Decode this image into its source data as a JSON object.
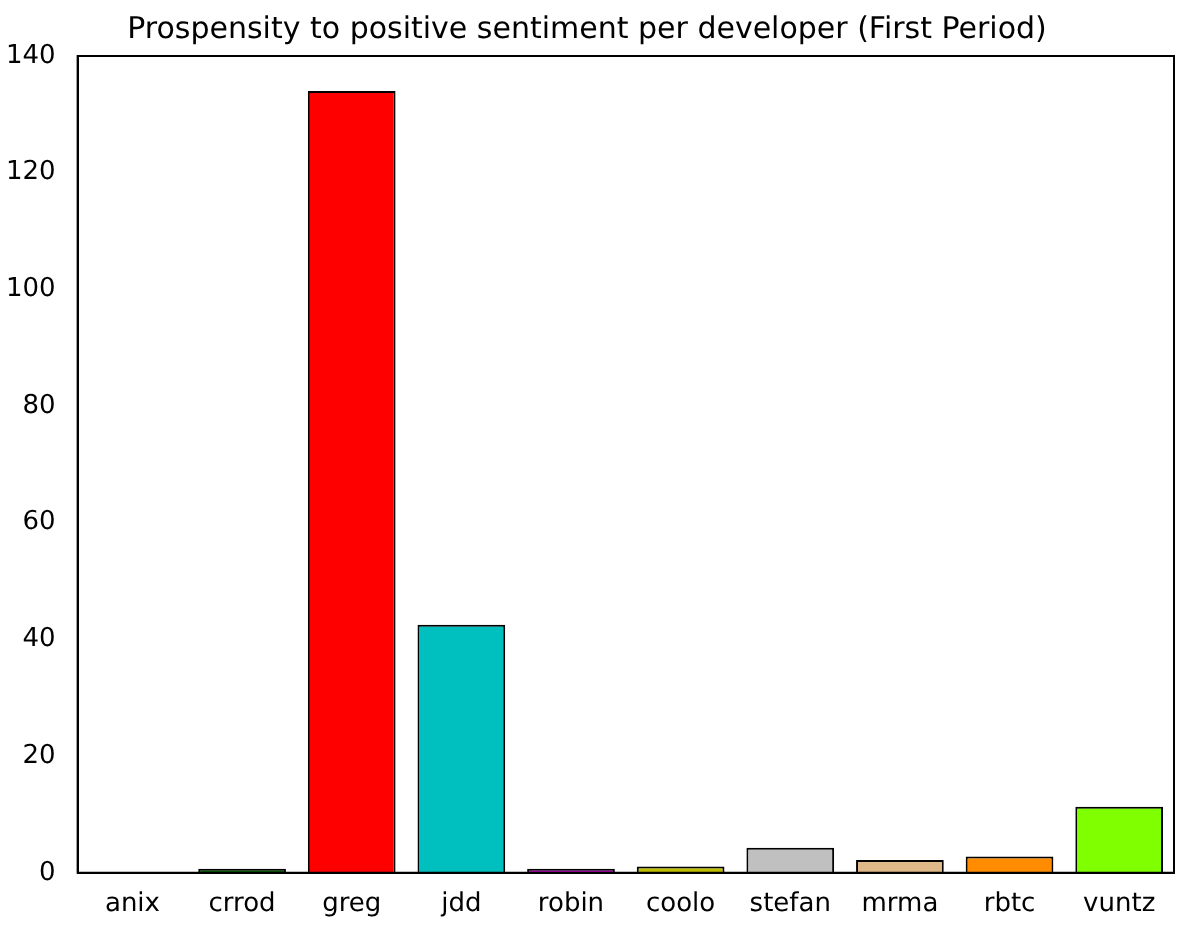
{
  "chart_data": {
    "type": "bar",
    "title": "Prospensity to positive sentiment per developer (First Period)",
    "categories": [
      "anix",
      "crrod",
      "greg",
      "jdd",
      "robin",
      "coolo",
      "stefan",
      "mrma",
      "rbtc",
      "vuntz"
    ],
    "values": [
      null,
      0.7,
      134,
      42.5,
      0.7,
      1.1,
      4.3,
      2.2,
      2.8,
      11.3
    ],
    "colors": [
      "#000080",
      "#006400",
      "#ff0000",
      "#00bfbf",
      "#bf00bf",
      "#bfbf00",
      "#c0c0c0",
      "#deb887",
      "#ff8c00",
      "#7fff00"
    ],
    "ylim": [
      0,
      140
    ],
    "yticks": [
      0,
      20,
      40,
      60,
      80,
      100,
      120,
      140
    ],
    "grid": false
  }
}
